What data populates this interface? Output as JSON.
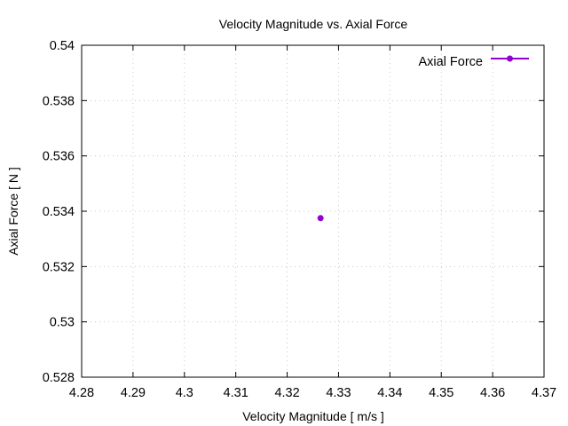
{
  "chart_data": {
    "type": "scatter",
    "title": "Velocity Magnitude vs. Axial Force",
    "xlabel": "Velocity Magnitude [ m/s ]",
    "ylabel": "Axial Force [ N ]",
    "xlim": [
      4.28,
      4.37
    ],
    "ylim": [
      0.528,
      0.54
    ],
    "xticks": [
      4.28,
      4.29,
      4.3,
      4.31,
      4.32,
      4.33,
      4.34,
      4.35,
      4.36,
      4.37
    ],
    "yticks": [
      0.528,
      0.53,
      0.532,
      0.534,
      0.536,
      0.538,
      0.54
    ],
    "xtick_labels": [
      "4.28",
      "4.29",
      "4.3",
      "4.31",
      "4.32",
      "4.33",
      "4.34",
      "4.35",
      "4.36",
      "4.37"
    ],
    "ytick_labels": [
      "0.528",
      "0.53",
      "0.532",
      "0.534",
      "0.536",
      "0.538",
      "0.54"
    ],
    "grid": true,
    "legend_position": "top-right",
    "series": [
      {
        "name": "Axial Force",
        "color": "#9400d3",
        "points": [
          {
            "x": 4.3265,
            "y": 0.53375
          }
        ]
      }
    ]
  }
}
